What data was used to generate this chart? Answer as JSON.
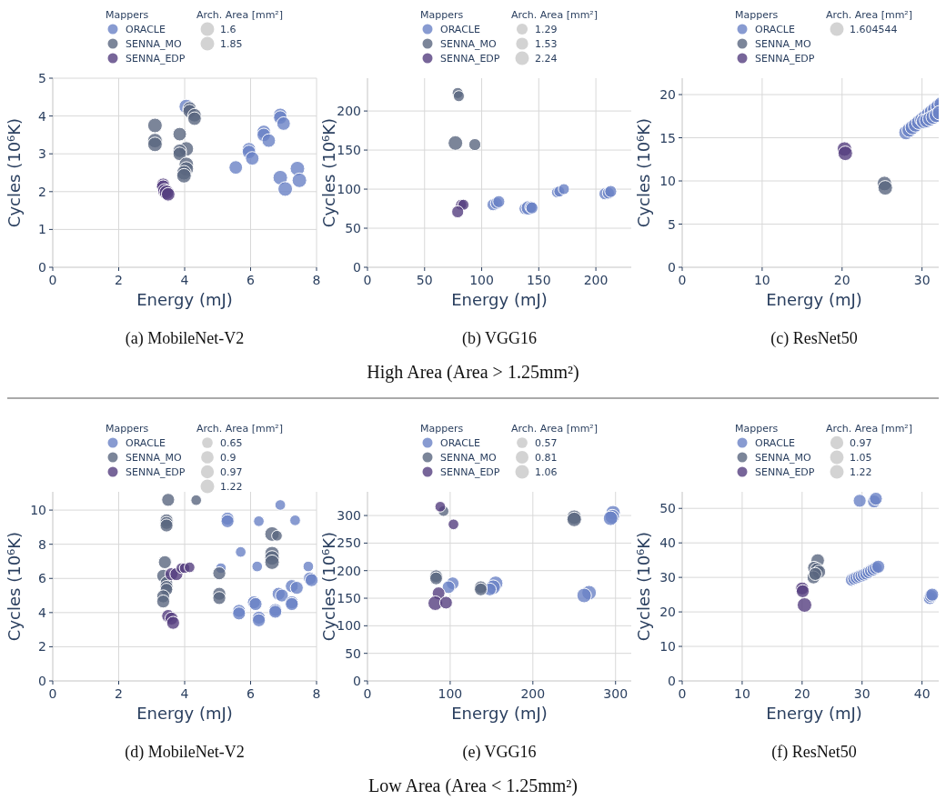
{
  "chart_data": [
    {
      "type": "bubble",
      "title": "(a) MobileNet-V2",
      "xlabel": "Energy (mJ)",
      "ylabel": "Cycles (10⁶K)",
      "legend_title": "Mappers",
      "annotations": [
        "Arch. Area [mm²]"
      ],
      "legend": "top",
      "grid": true,
      "xlim": [
        0,
        8
      ],
      "ylim": [
        0,
        5
      ],
      "xticks": [
        0,
        2,
        4,
        6,
        8
      ],
      "yticks": [
        0,
        1,
        2,
        3,
        4,
        5
      ],
      "size_legend": [
        1.6,
        1.85
      ],
      "series": [
        {
          "name": "ORACLE",
          "color": "#6a82c6",
          "x": [
            4.05,
            6.9,
            6.9,
            7.0,
            6.4,
            6.4,
            6.55,
            5.95,
            5.95,
            6.05,
            5.55,
            7.42,
            6.9,
            7.48,
            7.05
          ],
          "values": [
            4.25,
            4.03,
            3.96,
            3.8,
            3.58,
            3.5,
            3.35,
            3.12,
            3.05,
            2.88,
            2.64,
            2.61,
            2.37,
            2.3,
            2.07
          ],
          "sizes": [
            1.85,
            1.6,
            1.6,
            1.6,
            1.6,
            1.6,
            1.6,
            1.6,
            1.6,
            1.6,
            1.6,
            1.85,
            1.85,
            1.85,
            1.85
          ]
        },
        {
          "name": "SENNA_MO",
          "color": "#5a6680",
          "x": [
            4.15,
            4.15,
            4.3,
            4.3,
            3.1,
            3.1,
            3.1,
            3.85,
            4.05,
            3.85,
            3.85,
            4.05,
            4.05,
            3.98,
            3.98
          ],
          "values": [
            4.2,
            4.13,
            4.02,
            3.93,
            3.75,
            3.35,
            3.25,
            3.52,
            3.13,
            3.08,
            3.0,
            2.72,
            2.6,
            2.5,
            2.42
          ],
          "sizes": [
            1.6,
            1.6,
            1.6,
            1.6,
            1.85,
            1.85,
            1.85,
            1.6,
            1.85,
            1.6,
            1.6,
            1.85,
            1.85,
            1.85,
            1.85
          ]
        },
        {
          "name": "SENNA_EDP",
          "color": "#553f7f",
          "x": [
            3.35,
            3.35,
            3.4,
            3.45,
            3.5
          ],
          "values": [
            2.18,
            2.13,
            2.02,
            1.98,
            1.93
          ],
          "sizes": [
            1.6,
            1.6,
            1.85,
            1.85,
            1.6
          ]
        }
      ]
    },
    {
      "type": "bubble",
      "title": "(b) VGG16",
      "subtitle": "High Area (Area > 1.25mm²)",
      "xlabel": "Energy (mJ)",
      "ylabel": "Cycles (10⁶K)",
      "legend_title": "Mappers",
      "annotations": [
        "Arch. Area [mm²]"
      ],
      "legend": "top",
      "grid": true,
      "xlim": [
        0,
        231
      ],
      "ylim": [
        0,
        242
      ],
      "xticks": [
        0,
        50,
        100,
        150,
        200
      ],
      "yticks": [
        0,
        50,
        100,
        150,
        200
      ],
      "size_legend": [
        1.29,
        1.53,
        2.24
      ],
      "series": [
        {
          "name": "ORACLE",
          "color": "#6a82c6",
          "x": [
            110,
            113,
            115,
            138,
            141,
            143,
            144,
            166,
            168,
            172,
            208,
            211,
            213
          ],
          "values": [
            80,
            82,
            84,
            75,
            76,
            77,
            76,
            96,
            97,
            100,
            94,
            95,
            97
          ],
          "sizes": [
            1.53,
            1.53,
            1.53,
            1.53,
            2.24,
            1.53,
            1.53,
            1.29,
            1.29,
            1.29,
            1.53,
            1.53,
            1.53
          ]
        },
        {
          "name": "SENNA_MO",
          "color": "#5a6680",
          "x": [
            79,
            80,
            77,
            94
          ],
          "values": [
            223,
            219,
            159,
            157
          ],
          "sizes": [
            1.29,
            1.29,
            2.24,
            1.53
          ]
        },
        {
          "name": "SENNA_EDP",
          "color": "#553f7f",
          "x": [
            82,
            84,
            79
          ],
          "values": [
            80,
            80,
            71
          ],
          "sizes": [
            1.29,
            1.29,
            1.53
          ]
        }
      ]
    },
    {
      "type": "bubble",
      "title": "(c) ResNet50",
      "xlabel": "Energy (mJ)",
      "ylabel": "Cycles (10⁶K)",
      "legend_title": "Mappers",
      "annotations": [
        "Arch. Area [mm²]"
      ],
      "legend": "top",
      "grid": true,
      "xlim": [
        0,
        33
      ],
      "ylim": [
        0,
        21.9
      ],
      "xticks": [
        0,
        10,
        20,
        30
      ],
      "yticks": [
        0,
        5,
        10,
        15,
        20
      ],
      "size_legend": [
        1.604544
      ],
      "series": [
        {
          "name": "ORACLE",
          "color": "#6a82c6",
          "x": [
            28,
            28.4,
            28.8,
            29.2,
            29.6,
            30,
            30.4,
            30.8,
            31.2,
            31.6,
            32,
            32.4,
            30.2,
            30.6,
            31,
            31.4,
            31.8,
            32.2
          ],
          "values": [
            15.6,
            15.9,
            16.2,
            16.5,
            16.8,
            17.1,
            17.4,
            17.7,
            18.0,
            18.3,
            18.6,
            18.9,
            16.9,
            17.0,
            17.2,
            17.4,
            17.6,
            17.9
          ],
          "sizes": [
            1.604544,
            1.604544,
            1.604544,
            1.604544,
            1.604544,
            1.604544,
            1.604544,
            1.604544,
            1.604544,
            1.604544,
            1.604544,
            1.604544,
            1.604544,
            1.604544,
            1.604544,
            1.604544,
            1.604544,
            1.604544
          ]
        },
        {
          "name": "SENNA_MO",
          "color": "#5a6680",
          "x": [
            25.3,
            25.4
          ],
          "values": [
            9.7,
            9.2
          ],
          "sizes": [
            1.604544,
            1.604544
          ]
        },
        {
          "name": "SENNA_EDP",
          "color": "#553f7f",
          "x": [
            20.3,
            20.4
          ],
          "values": [
            13.7,
            13.2
          ],
          "sizes": [
            1.604544,
            1.604544
          ]
        }
      ]
    },
    {
      "type": "bubble",
      "title": "(d) MobileNet-V2",
      "xlabel": "Energy (mJ)",
      "ylabel": "Cycles (10⁶K)",
      "legend_title": "Mappers",
      "annotations": [
        "Arch. Area [mm²]"
      ],
      "legend": "top",
      "grid": true,
      "xlim": [
        0,
        8
      ],
      "ylim": [
        0,
        11.07
      ],
      "xticks": [
        0,
        2,
        4,
        6,
        8
      ],
      "yticks": [
        0,
        2,
        4,
        6,
        8,
        10
      ],
      "size_legend": [
        0.65,
        0.9,
        0.97,
        1.22
      ],
      "series": [
        {
          "name": "ORACLE",
          "color": "#6a82c6",
          "x": [
            6.9,
            7.35,
            6.25,
            5.3,
            5.3,
            5.7,
            6.2,
            5.1,
            7.75,
            7.8,
            7.85,
            7.25,
            7.4,
            6.85,
            6.95,
            6.1,
            6.15,
            5.65,
            5.65,
            6.25,
            6.25,
            6.75,
            6.75,
            7.25,
            7.25
          ],
          "values": [
            10.3,
            9.4,
            9.35,
            9.5,
            9.35,
            7.55,
            6.7,
            6.6,
            6.7,
            6.0,
            5.9,
            5.55,
            5.45,
            5.1,
            5.0,
            4.6,
            4.5,
            4.1,
            3.95,
            3.7,
            3.55,
            4.15,
            4.05,
            4.6,
            4.5
          ],
          "sizes": [
            0.65,
            0.65,
            0.65,
            0.97,
            0.97,
            0.65,
            0.65,
            0.65,
            0.65,
            0.97,
            0.97,
            0.97,
            0.97,
            0.97,
            0.97,
            0.97,
            0.97,
            0.97,
            0.97,
            0.97,
            0.97,
            0.97,
            0.97,
            0.97,
            0.97
          ]
        },
        {
          "name": "SENNA_MO",
          "color": "#5a6680",
          "x": [
            3.5,
            4.35,
            3.45,
            3.45,
            3.45,
            3.4,
            3.35,
            3.45,
            3.45,
            3.45,
            3.35,
            3.35,
            5.05,
            5.05,
            5.05,
            6.65,
            6.8,
            6.65,
            6.65,
            6.65
          ],
          "values": [
            10.6,
            10.58,
            9.4,
            9.25,
            9.1,
            6.95,
            6.15,
            5.75,
            5.5,
            5.35,
            4.95,
            4.65,
            6.3,
            5.1,
            4.85,
            8.6,
            8.5,
            7.45,
            7.2,
            6.95
          ],
          "sizes": [
            0.97,
            0.65,
            0.97,
            0.97,
            0.97,
            0.97,
            0.97,
            0.9,
            0.97,
            0.9,
            0.97,
            0.97,
            0.97,
            0.97,
            0.97,
            1.22,
            0.65,
            1.22,
            1.22,
            1.22
          ]
        },
        {
          "name": "SENNA_EDP",
          "color": "#553f7f",
          "x": [
            3.6,
            3.75,
            3.9,
            4.0,
            4.15,
            3.5,
            3.6,
            3.65
          ],
          "values": [
            6.25,
            6.25,
            6.6,
            6.6,
            6.65,
            3.8,
            3.65,
            3.4
          ],
          "sizes": [
            0.97,
            0.97,
            0.65,
            0.65,
            0.65,
            0.97,
            0.97,
            0.97
          ]
        }
      ]
    },
    {
      "type": "bubble",
      "title": "(e) VGG16",
      "subtitle": "Low Area (Area < 1.25mm²)",
      "xlabel": "Energy (mJ)",
      "ylabel": "Cycles (10⁶K)",
      "legend_title": "Mappers",
      "annotations": [
        "Arch. Area [mm²]"
      ],
      "legend": "top",
      "grid": true,
      "xlim": [
        0,
        319
      ],
      "ylim": [
        0,
        343
      ],
      "xticks": [
        0,
        100,
        200,
        300
      ],
      "yticks": [
        0,
        50,
        100,
        150,
        200,
        250,
        300
      ],
      "size_legend": [
        0.57,
        0.81,
        1.06
      ],
      "series": [
        {
          "name": "ORACLE",
          "color": "#6a82c6",
          "x": [
            103,
            98,
            155,
            152,
            148,
            268,
            262,
            297,
            296,
            294
          ],
          "values": [
            177,
            170,
            177,
            170,
            166,
            160,
            155,
            305,
            298,
            295
          ],
          "sizes": [
            0.81,
            0.81,
            1.06,
            1.06,
            0.81,
            1.06,
            1.06,
            1.06,
            1.06,
            1.06
          ]
        },
        {
          "name": "SENNA_MO",
          "color": "#5a6680",
          "x": [
            92,
            83,
            83,
            137,
            137,
            250,
            250
          ],
          "values": [
            308,
            190,
            186,
            170,
            166,
            297,
            293
          ],
          "sizes": [
            0.57,
            0.81,
            0.81,
            0.81,
            0.81,
            1.06,
            1.06
          ]
        },
        {
          "name": "SENNA_EDP",
          "color": "#553f7f",
          "x": [
            88,
            104,
            86,
            82,
            95
          ],
          "values": [
            316,
            284,
            159,
            141,
            142
          ],
          "sizes": [
            0.57,
            0.57,
            0.81,
            1.06,
            0.81
          ]
        }
      ]
    },
    {
      "type": "bubble",
      "title": "(f) ResNet50",
      "xlabel": "Energy (mJ)",
      "ylabel": "Cycles (10⁶K)",
      "legend_title": "Mappers",
      "annotations": [
        "Arch. Area [mm²]"
      ],
      "legend": "top",
      "grid": true,
      "xlim": [
        0,
        44
      ],
      "ylim": [
        0,
        54.8
      ],
      "xticks": [
        0,
        10,
        20,
        30,
        40
      ],
      "yticks": [
        0,
        10,
        20,
        30,
        40,
        50
      ],
      "size_legend": [
        0.97,
        1.05,
        1.22
      ],
      "series": [
        {
          "name": "ORACLE",
          "color": "#6a82c6",
          "x": [
            29.6,
            32.0,
            32.3,
            28.3,
            28.7,
            29.1,
            29.5,
            29.9,
            30.3,
            30.7,
            31.1,
            31.5,
            31.9,
            32.3,
            32.7,
            41.3,
            41.5,
            41.7
          ],
          "values": [
            52.2,
            52.0,
            52.8,
            29.3,
            29.6,
            29.9,
            30.2,
            30.5,
            30.8,
            31.1,
            31.5,
            31.9,
            32.3,
            32.7,
            33.1,
            24.0,
            24.6,
            25.0
          ],
          "sizes": [
            0.97,
            0.97,
            0.97,
            0.97,
            0.97,
            0.97,
            0.97,
            0.97,
            0.97,
            0.97,
            0.97,
            0.97,
            0.97,
            0.97,
            0.97,
            0.97,
            0.97,
            0.97
          ]
        },
        {
          "name": "SENNA_MO",
          "color": "#5a6680",
          "x": [
            22.6,
            22.0,
            22.5,
            22.8,
            21.9,
            22.2
          ],
          "values": [
            34.9,
            32.8,
            32.3,
            31.6,
            30.0,
            31.0
          ],
          "sizes": [
            1.05,
            0.97,
            1.05,
            1.05,
            0.97,
            0.97
          ]
        },
        {
          "name": "SENNA_EDP",
          "color": "#553f7f",
          "x": [
            20.0,
            20.1,
            20.4
          ],
          "values": [
            26.8,
            26.0,
            22.0
          ],
          "sizes": [
            0.97,
            0.97,
            1.22
          ]
        }
      ]
    }
  ]
}
